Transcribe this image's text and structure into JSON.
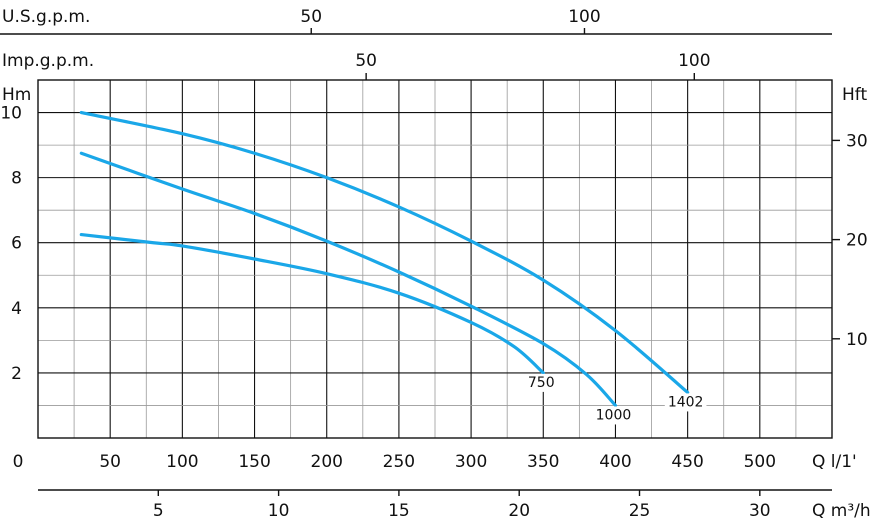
{
  "chart_data": {
    "type": "line",
    "title": "",
    "axes": {
      "us_gpm": {
        "label": "U.S.g.p.m.",
        "ticks": [
          "50",
          "100"
        ],
        "tick_values": [
          50,
          100
        ]
      },
      "imp_gpm": {
        "label": "Imp.g.p.m.",
        "ticks": [
          "50",
          "100"
        ],
        "tick_values": [
          50,
          100
        ]
      },
      "x_lpm": {
        "label": "Q  l/1'",
        "range": [
          0,
          550
        ],
        "ticks": [
          "0",
          "50",
          "100",
          "150",
          "200",
          "250",
          "300",
          "350",
          "400",
          "450",
          "500"
        ],
        "tick_values": [
          0,
          50,
          100,
          150,
          200,
          250,
          300,
          350,
          400,
          450,
          500
        ]
      },
      "x_m3h": {
        "label": "Q  m³/h",
        "ticks": [
          "5",
          "10",
          "15",
          "20",
          "25",
          "30"
        ],
        "tick_values": [
          5,
          10,
          15,
          20,
          25,
          30
        ]
      },
      "y_m": {
        "label": "Hm",
        "range": [
          0,
          11
        ],
        "ticks": [
          "2",
          "4",
          "6",
          "8",
          "10"
        ],
        "tick_values": [
          2,
          4,
          6,
          8,
          10
        ]
      },
      "y_ft": {
        "label": "Hft",
        "ticks": [
          "10",
          "20",
          "30"
        ],
        "tick_values": [
          10,
          20,
          30
        ]
      }
    },
    "grid": true,
    "line_color": "#1aa7e8",
    "series": [
      {
        "name": "1402",
        "x": [
          30,
          100,
          150,
          200,
          250,
          300,
          350,
          400,
          450
        ],
        "y": [
          10.0,
          9.35,
          8.75,
          8.0,
          7.1,
          6.05,
          4.85,
          3.3,
          1.4
        ]
      },
      {
        "name": "1000",
        "x": [
          30,
          100,
          150,
          200,
          250,
          300,
          350,
          380,
          400
        ],
        "y": [
          8.75,
          7.65,
          6.9,
          6.05,
          5.1,
          4.05,
          2.9,
          1.95,
          1.0
        ]
      },
      {
        "name": "750",
        "x": [
          30,
          80,
          100,
          150,
          200,
          250,
          300,
          330,
          350
        ],
        "y": [
          6.25,
          6.0,
          5.9,
          5.5,
          5.05,
          4.45,
          3.55,
          2.8,
          2.0
        ]
      }
    ]
  }
}
